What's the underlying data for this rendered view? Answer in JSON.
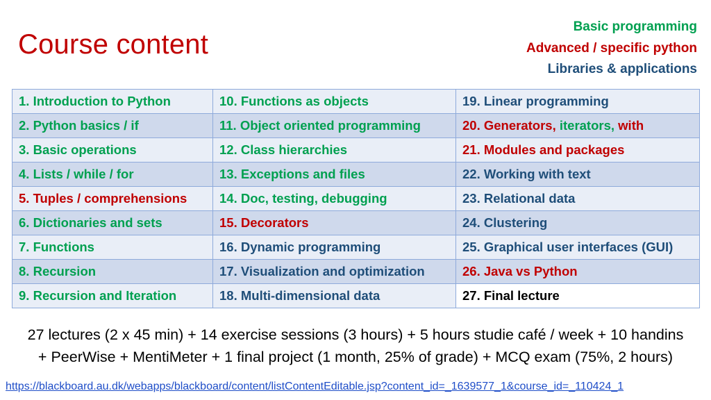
{
  "header": {
    "title": "Course content",
    "legend": {
      "basic": "Basic programming",
      "advanced": "Advanced / specific python",
      "libraries": "Libraries & applications"
    }
  },
  "colors": {
    "basic": "#00a050",
    "advanced": "#c00000",
    "libraries": "#1f4e79",
    "link": "#1f4ec8"
  },
  "lectures": {
    "col1": [
      {
        "num": "1.",
        "title": "Introduction to Python"
      },
      {
        "num": "2.",
        "title": "Python basics / if"
      },
      {
        "num": "3.",
        "title": "Basic operations"
      },
      {
        "num": "4.",
        "title": "Lists / while / for"
      },
      {
        "num": "5.",
        "title": "Tuples / comprehensions"
      },
      {
        "num": "6.",
        "title": "Dictionaries and sets"
      },
      {
        "num": "7.",
        "title": "Functions"
      },
      {
        "num": "8.",
        "title": "Recursion"
      },
      {
        "num": "9.",
        "title": "Recursion and Iteration"
      }
    ],
    "col2": [
      {
        "num": "10.",
        "title": "Functions as objects"
      },
      {
        "num": "11.",
        "title": "Object oriented programming"
      },
      {
        "num": "12.",
        "title": "Class hierarchies"
      },
      {
        "num": "13.",
        "title": "Exceptions and files"
      },
      {
        "num": "14.",
        "title": "Doc, testing, debugging"
      },
      {
        "num": "15.",
        "title": "Decorators"
      },
      {
        "num": "16.",
        "title": "Dynamic programming"
      },
      {
        "num": "17.",
        "title": "Visualization and optimization"
      },
      {
        "num": "18.",
        "title": "Multi-dimensional data"
      }
    ],
    "col3": [
      {
        "num": "19.",
        "title": "Linear programming"
      },
      {
        "num": "20.",
        "title_a": "Generators,",
        "title_b": "iterators,",
        "title_c": "with"
      },
      {
        "num": "21.",
        "title": "Modules and packages"
      },
      {
        "num": "22.",
        "title": "Working with text"
      },
      {
        "num": "23.",
        "title": "Relational data"
      },
      {
        "num": "24.",
        "title": "Clustering"
      },
      {
        "num": "25.",
        "title": "Graphical user interfaces (GUI)"
      },
      {
        "num": "26.",
        "title": "Java vs Python"
      },
      {
        "num": "27.",
        "title": "Final lecture"
      }
    ]
  },
  "summary": {
    "line1": "27 lectures (2 x 45 min) + 14 exercise sessions (3 hours) + 5 hours studie café / week + 10 handins",
    "line2": "+ PeerWise + MentiMeter + 1 final project (1 month, 25% of grade) + MCQ exam (75%, 2 hours)"
  },
  "link": "https://blackboard.au.dk/webapps/blackboard/content/listContentEditable.jsp?content_id=_1639577_1&course_id=_110424_1"
}
